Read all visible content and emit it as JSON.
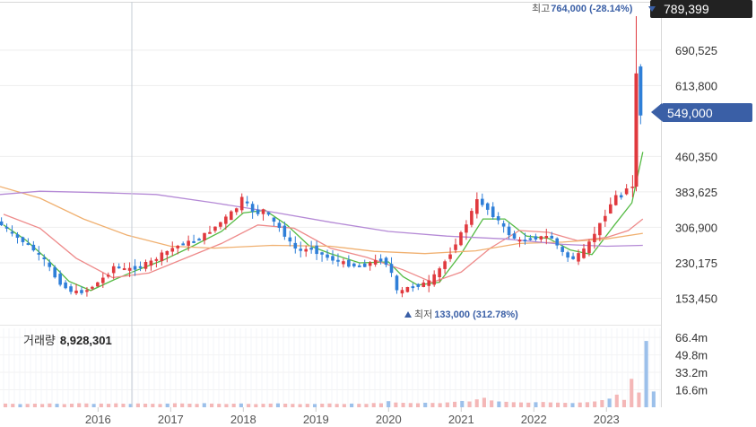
{
  "chart_data": {
    "type": "candlestick",
    "price_axis": {
      "ticks": [
        "690,525",
        "613,800",
        "460,350",
        "383,625",
        "306,900",
        "230,175",
        "153,450"
      ],
      "tick_values": [
        690525,
        613800,
        460350,
        383625,
        306900,
        230175,
        153450
      ],
      "range": [
        100000,
        795000
      ]
    },
    "x_axis": {
      "ticks": [
        "2016",
        "2017",
        "2018",
        "2019",
        "2020",
        "2021",
        "2022",
        "2023"
      ],
      "tick_dates": [
        2016.0,
        2017.0,
        2018.0,
        2019.0,
        2020.0,
        2021.0,
        2022.0,
        2023.0
      ],
      "range": [
        2014.65,
        2023.75
      ]
    },
    "badges": {
      "max_price": "789,399",
      "current_price": "549,000"
    },
    "annotations": {
      "high_label": "최고",
      "high_value": "764,000 (-28.14%)",
      "low_label": "최저",
      "low_value": "133,000 (312.78%)"
    },
    "volume": {
      "label": "거래량",
      "value": "8,928,301",
      "ticks": [
        "66.4m",
        "49.8m",
        "33.2m",
        "16.6m"
      ],
      "tick_values": [
        66.4,
        49.8,
        33.2,
        16.6
      ],
      "range": [
        0,
        75
      ]
    },
    "price_series": [
      [
        2014.65,
        322000
      ],
      [
        2014.8,
        305000
      ],
      [
        2014.95,
        285000
      ],
      [
        2015.1,
        270000
      ],
      [
        2015.25,
        248000
      ],
      [
        2015.35,
        232000
      ],
      [
        2015.5,
        195000
      ],
      [
        2015.65,
        172000
      ],
      [
        2015.8,
        165000
      ],
      [
        2015.92,
        172000
      ],
      [
        2016.05,
        185000
      ],
      [
        2016.2,
        205000
      ],
      [
        2016.3,
        225000
      ],
      [
        2016.45,
        215000
      ],
      [
        2016.6,
        220000
      ],
      [
        2016.8,
        232000
      ],
      [
        2016.95,
        248000
      ],
      [
        2017.1,
        262000
      ],
      [
        2017.25,
        272000
      ],
      [
        2017.4,
        278000
      ],
      [
        2017.55,
        292000
      ],
      [
        2017.7,
        310000
      ],
      [
        2017.85,
        330000
      ],
      [
        2018.0,
        352000
      ],
      [
        2018.05,
        370000
      ],
      [
        2018.15,
        350000
      ],
      [
        2018.25,
        335000
      ],
      [
        2018.35,
        345000
      ],
      [
        2018.45,
        325000
      ],
      [
        2018.6,
        300000
      ],
      [
        2018.75,
        265000
      ],
      [
        2018.85,
        255000
      ],
      [
        2019.0,
        262000
      ],
      [
        2019.1,
        252000
      ],
      [
        2019.25,
        240000
      ],
      [
        2019.4,
        232000
      ],
      [
        2019.55,
        225000
      ],
      [
        2019.7,
        222000
      ],
      [
        2019.85,
        232000
      ],
      [
        2020.0,
        238000
      ],
      [
        2020.1,
        215000
      ],
      [
        2020.2,
        160000
      ],
      [
        2020.3,
        175000
      ],
      [
        2020.5,
        182000
      ],
      [
        2020.65,
        190000
      ],
      [
        2020.8,
        222000
      ],
      [
        2020.9,
        245000
      ],
      [
        2021.0,
        275000
      ],
      [
        2021.1,
        300000
      ],
      [
        2021.2,
        335000
      ],
      [
        2021.3,
        368000
      ],
      [
        2021.4,
        352000
      ],
      [
        2021.5,
        335000
      ],
      [
        2021.6,
        318000
      ],
      [
        2021.7,
        296000
      ],
      [
        2021.8,
        284000
      ],
      [
        2021.9,
        275000
      ],
      [
        2022.0,
        282000
      ],
      [
        2022.15,
        285000
      ],
      [
        2022.3,
        288000
      ],
      [
        2022.4,
        266000
      ],
      [
        2022.5,
        245000
      ],
      [
        2022.6,
        238000
      ],
      [
        2022.7,
        248000
      ],
      [
        2022.8,
        262000
      ],
      [
        2022.9,
        292000
      ],
      [
        2023.0,
        318000
      ],
      [
        2023.1,
        350000
      ],
      [
        2023.2,
        375000
      ],
      [
        2023.3,
        372000
      ],
      [
        2023.35,
        395000
      ],
      [
        2023.42,
        640000
      ],
      [
        2023.5,
        549000
      ]
    ],
    "moving_averages": {
      "green": [
        [
          2014.7,
          312000
        ],
        [
          2015.0,
          280000
        ],
        [
          2015.3,
          238000
        ],
        [
          2015.6,
          190000
        ],
        [
          2015.9,
          170000
        ],
        [
          2016.2,
          192000
        ],
        [
          2016.5,
          212000
        ],
        [
          2016.9,
          236000
        ],
        [
          2017.3,
          266000
        ],
        [
          2017.7,
          298000
        ],
        [
          2018.0,
          338000
        ],
        [
          2018.3,
          344000
        ],
        [
          2018.6,
          312000
        ],
        [
          2018.9,
          268000
        ],
        [
          2019.2,
          250000
        ],
        [
          2019.6,
          230000
        ],
        [
          2020.0,
          232000
        ],
        [
          2020.2,
          200000
        ],
        [
          2020.4,
          182000
        ],
        [
          2020.7,
          188000
        ],
        [
          2021.0,
          250000
        ],
        [
          2021.3,
          325000
        ],
        [
          2021.6,
          325000
        ],
        [
          2021.9,
          288000
        ],
        [
          2022.2,
          283000
        ],
        [
          2022.5,
          258000
        ],
        [
          2022.8,
          248000
        ],
        [
          2023.1,
          310000
        ],
        [
          2023.35,
          360000
        ],
        [
          2023.5,
          470000
        ]
      ],
      "red": [
        [
          2014.7,
          335000
        ],
        [
          2015.2,
          305000
        ],
        [
          2015.7,
          240000
        ],
        [
          2016.2,
          198000
        ],
        [
          2016.7,
          208000
        ],
        [
          2017.2,
          240000
        ],
        [
          2017.7,
          272000
        ],
        [
          2018.2,
          312000
        ],
        [
          2018.7,
          305000
        ],
        [
          2019.2,
          262000
        ],
        [
          2019.7,
          242000
        ],
        [
          2020.2,
          215000
        ],
        [
          2020.6,
          188000
        ],
        [
          2021.0,
          210000
        ],
        [
          2021.4,
          262000
        ],
        [
          2021.8,
          300000
        ],
        [
          2022.2,
          296000
        ],
        [
          2022.6,
          278000
        ],
        [
          2023.0,
          285000
        ],
        [
          2023.3,
          300000
        ],
        [
          2023.5,
          325000
        ]
      ],
      "orange": [
        [
          2014.65,
          395000
        ],
        [
          2015.2,
          370000
        ],
        [
          2015.8,
          325000
        ],
        [
          2016.4,
          290000
        ],
        [
          2017.0,
          266000
        ],
        [
          2017.6,
          262000
        ],
        [
          2018.4,
          268000
        ],
        [
          2019.2,
          266000
        ],
        [
          2019.8,
          255000
        ],
        [
          2020.5,
          250000
        ],
        [
          2021.2,
          256000
        ],
        [
          2021.8,
          272000
        ],
        [
          2022.4,
          275000
        ],
        [
          2023.0,
          282000
        ],
        [
          2023.5,
          294000
        ]
      ],
      "purple": [
        [
          2014.65,
          378000
        ],
        [
          2015.2,
          385000
        ],
        [
          2016.0,
          382000
        ],
        [
          2016.8,
          378000
        ],
        [
          2017.6,
          360000
        ],
        [
          2018.4,
          340000
        ],
        [
          2019.2,
          318000
        ],
        [
          2020.0,
          298000
        ],
        [
          2020.8,
          288000
        ],
        [
          2021.6,
          282000
        ],
        [
          2022.4,
          270000
        ],
        [
          2023.0,
          266000
        ],
        [
          2023.5,
          268000
        ]
      ]
    },
    "volume_bars": [
      3.5,
      3.3,
      3.0,
      3.2,
      3.4,
      3.1,
      3.6,
      3.3,
      3.0,
      3.4,
      3.8,
      3.6,
      3.2,
      3.5,
      3.3,
      3.7,
      3.4,
      3.2,
      3.6,
      3.4,
      3.3,
      3.1,
      3.5,
      3.8,
      3.6,
      3.4,
      3.2,
      3.9,
      3.5,
      3.3,
      3.1,
      3.4,
      3.6,
      3.2,
      3.0,
      3.3,
      3.5,
      3.7,
      3.4,
      3.2,
      3.0,
      3.3,
      3.1,
      3.4,
      3.6,
      3.2,
      3.1,
      3.5,
      3.3,
      3.2,
      4.0,
      3.8,
      5.8,
      4.5,
      4.2,
      4.0,
      3.8,
      4.3,
      4.1,
      3.9,
      4.6,
      5.2,
      6.0,
      5.5,
      7.5,
      9.0,
      6.5,
      5.5,
      5.2,
      4.8,
      4.6,
      4.4,
      4.8,
      5.0,
      4.6,
      4.4,
      4.2,
      4.0,
      4.5,
      4.8,
      5.5,
      6.8,
      8.2,
      12.0,
      7.0,
      27.0,
      14.0,
      63.0,
      15.0
    ],
    "colors": {
      "up": "#e0393e",
      "down": "#2f7fd8",
      "ma_green": "#55bb44",
      "ma_red": "#ee8a8a",
      "ma_orange": "#f0b070",
      "ma_purple": "#b58ad6",
      "badge_dark": "#222222",
      "badge_blue": "#3a5fa6",
      "vol_bar": "#f4b7b7",
      "vol_bar_blue": "#9cc0ea"
    }
  }
}
